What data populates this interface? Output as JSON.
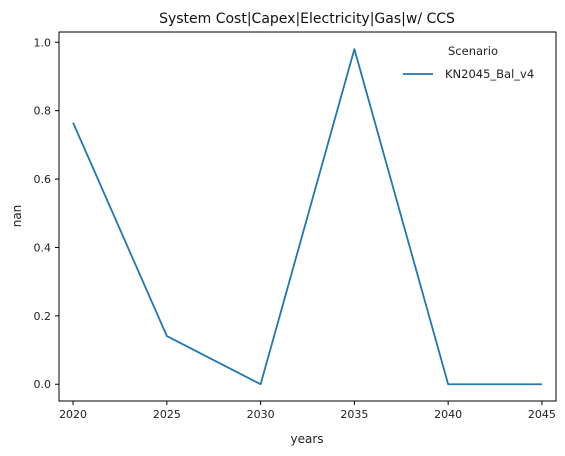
{
  "chart_data": {
    "type": "line",
    "title": "System Cost|Capex|Electricity|Gas|w/ CCS",
    "xlabel": "years",
    "ylabel": "nan",
    "x": [
      2020,
      2025,
      2030,
      2035,
      2040,
      2045
    ],
    "x_ticks": [
      "2020",
      "2025",
      "2030",
      "2035",
      "2040",
      "2045"
    ],
    "y_ticks": [
      "0.0",
      "0.2",
      "0.4",
      "0.6",
      "0.8",
      "1.0"
    ],
    "xlim": [
      2019.25,
      2045.75
    ],
    "ylim": [
      -0.049,
      1.03
    ],
    "grid": false,
    "legend": {
      "title": "Scenario",
      "placement": "top-right"
    },
    "series": [
      {
        "name": "KN2045_Bal_v4",
        "color": "#1f77b4",
        "values": [
          0.765,
          0.141,
          0.0,
          0.98,
          0.0,
          0.0
        ]
      }
    ]
  }
}
